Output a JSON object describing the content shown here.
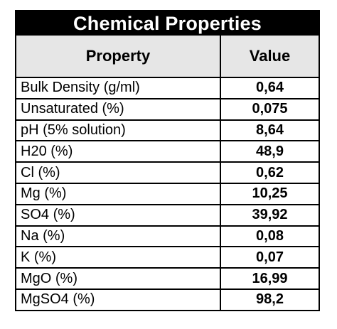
{
  "title": "Chemical Properties",
  "headers": {
    "property": "Property",
    "value": "Value"
  },
  "rows": [
    {
      "property": "Bulk Density (g/ml)",
      "value": "0,64"
    },
    {
      "property": "Unsaturated (%)",
      "value": "0,075"
    },
    {
      "property": "pH (5% solution)",
      "value": "8,64"
    },
    {
      "property": "H20 (%)",
      "value": "48,9"
    },
    {
      "property": "Cl (%)",
      "value": "0,62"
    },
    {
      "property": "Mg (%)",
      "value": "10,25"
    },
    {
      "property": "SO4 (%)",
      "value": "39,92"
    },
    {
      "property": "Na (%)",
      "value": "0,08"
    },
    {
      "property": "K (%)",
      "value": "0,07"
    },
    {
      "property": "MgO (%)",
      "value": "16,99"
    },
    {
      "property": "MgSO4 (%)",
      "value": "98,2"
    }
  ]
}
